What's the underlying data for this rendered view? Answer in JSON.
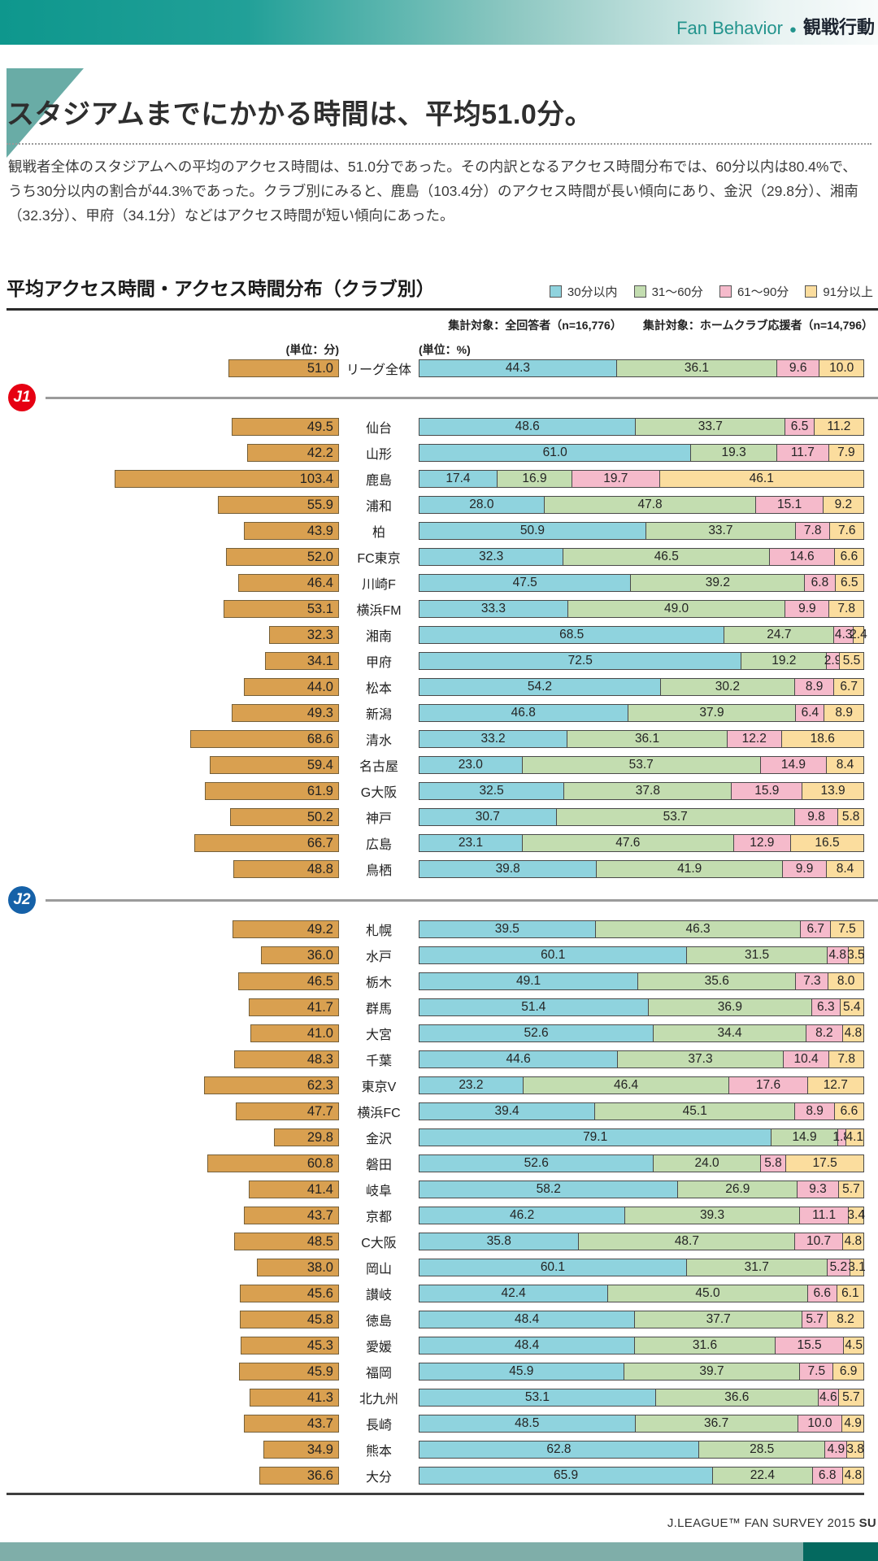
{
  "header": {
    "category_en": "Fan Behavior",
    "bullet": "●",
    "category_ja": "観戦行動"
  },
  "title": "スタジアムまでにかかる時間は、平均51.0分。",
  "body": "観戦者全体のスタジアムへの平均のアクセス時間は、51.0分であった。その内訳となるアクセス時間分布では、60分以内は80.4%で、うち30分以内の割合が44.3%であった。クラブ別にみると、鹿島（103.4分）のアクセス時間が長い傾向にあり、金沢（29.8分）、湘南（32.3分）、甲府（34.1分）などはアクセス時間が短い傾向にあった。",
  "footer": {
    "text": "J.LEAGUE™ FAN SURVEY 2015 ",
    "bold_suffix": "SU"
  },
  "colors": {
    "accent_teal": "#0E978D",
    "triangle": "#69ACA6",
    "avg_bar": "#D9A050",
    "j1_badge": "#E60012",
    "j2_badge": "#1561A8",
    "bottom_band": "#7FAEA9",
    "bottom_band_dark": "#04695F"
  },
  "chart_data": {
    "type": "bar",
    "title": "平均アクセス時間・アクセス時間分布（クラブ別）",
    "note_left": "集計対象：全回答者（n=16,776）",
    "note_right": "集計対象：ホームクラブ応援者（n=14,796）",
    "unit_avg_label": "(単位：分)",
    "unit_dist_label": "(単位：%)",
    "legend": [
      "30分以内",
      "31～60分",
      "61～90分",
      "91分以上"
    ],
    "segment_colors": [
      "#8FD3DE",
      "#C3DDB0",
      "#F5BACB",
      "#FBDD9E"
    ],
    "avg_axis_max": 103.4,
    "total_row": {
      "club": "リーグ全体",
      "avg": 51.0,
      "dist": [
        44.3,
        36.1,
        9.6,
        10.0
      ]
    },
    "sections": [
      {
        "badge": "J1",
        "badge_color": "#E60012",
        "rows": [
          {
            "club": "仙台",
            "avg": 49.5,
            "dist": [
              48.6,
              33.7,
              6.5,
              11.2
            ]
          },
          {
            "club": "山形",
            "avg": 42.2,
            "dist": [
              61.0,
              19.3,
              11.7,
              7.9
            ]
          },
          {
            "club": "鹿島",
            "avg": 103.4,
            "dist": [
              17.4,
              16.9,
              19.7,
              46.1
            ]
          },
          {
            "club": "浦和",
            "avg": 55.9,
            "dist": [
              28.0,
              47.8,
              15.1,
              9.2
            ]
          },
          {
            "club": "柏",
            "avg": 43.9,
            "dist": [
              50.9,
              33.7,
              7.8,
              7.6
            ]
          },
          {
            "club": "FC東京",
            "avg": 52.0,
            "dist": [
              32.3,
              46.5,
              14.6,
              6.6
            ]
          },
          {
            "club": "川崎F",
            "avg": 46.4,
            "dist": [
              47.5,
              39.2,
              6.8,
              6.5
            ]
          },
          {
            "club": "横浜FM",
            "avg": 53.1,
            "dist": [
              33.3,
              49.0,
              9.9,
              7.8
            ]
          },
          {
            "club": "湘南",
            "avg": 32.3,
            "dist": [
              68.5,
              24.7,
              4.3,
              2.4
            ]
          },
          {
            "club": "甲府",
            "avg": 34.1,
            "dist": [
              72.5,
              19.2,
              2.9,
              5.5
            ]
          },
          {
            "club": "松本",
            "avg": 44.0,
            "dist": [
              54.2,
              30.2,
              8.9,
              6.7
            ]
          },
          {
            "club": "新潟",
            "avg": 49.3,
            "dist": [
              46.8,
              37.9,
              6.4,
              8.9
            ]
          },
          {
            "club": "清水",
            "avg": 68.6,
            "dist": [
              33.2,
              36.1,
              12.2,
              18.6
            ]
          },
          {
            "club": "名古屋",
            "avg": 59.4,
            "dist": [
              23.0,
              53.7,
              14.9,
              8.4
            ]
          },
          {
            "club": "G大阪",
            "avg": 61.9,
            "dist": [
              32.5,
              37.8,
              15.9,
              13.9
            ]
          },
          {
            "club": "神戸",
            "avg": 50.2,
            "dist": [
              30.7,
              53.7,
              9.8,
              5.8
            ]
          },
          {
            "club": "広島",
            "avg": 66.7,
            "dist": [
              23.1,
              47.6,
              12.9,
              16.5
            ]
          },
          {
            "club": "鳥栖",
            "avg": 48.8,
            "dist": [
              39.8,
              41.9,
              9.9,
              8.4
            ]
          }
        ]
      },
      {
        "badge": "J2",
        "badge_color": "#1561A8",
        "rows": [
          {
            "club": "札幌",
            "avg": 49.2,
            "dist": [
              39.5,
              46.3,
              6.7,
              7.5
            ]
          },
          {
            "club": "水戸",
            "avg": 36.0,
            "dist": [
              60.1,
              31.5,
              4.8,
              3.5
            ]
          },
          {
            "club": "栃木",
            "avg": 46.5,
            "dist": [
              49.1,
              35.6,
              7.3,
              8.0
            ]
          },
          {
            "club": "群馬",
            "avg": 41.7,
            "dist": [
              51.4,
              36.9,
              6.3,
              5.4
            ]
          },
          {
            "club": "大宮",
            "avg": 41.0,
            "dist": [
              52.6,
              34.4,
              8.2,
              4.8
            ]
          },
          {
            "club": "千葉",
            "avg": 48.3,
            "dist": [
              44.6,
              37.3,
              10.4,
              7.8
            ]
          },
          {
            "club": "東京V",
            "avg": 62.3,
            "dist": [
              23.2,
              46.4,
              17.6,
              12.7
            ]
          },
          {
            "club": "横浜FC",
            "avg": 47.7,
            "dist": [
              39.4,
              45.1,
              8.9,
              6.6
            ]
          },
          {
            "club": "金沢",
            "avg": 29.8,
            "dist": [
              79.1,
              14.9,
              1.8,
              4.1
            ]
          },
          {
            "club": "磐田",
            "avg": 60.8,
            "dist": [
              52.6,
              24.0,
              5.8,
              17.5
            ]
          },
          {
            "club": "岐阜",
            "avg": 41.4,
            "dist": [
              58.2,
              26.9,
              9.3,
              5.7
            ]
          },
          {
            "club": "京都",
            "avg": 43.7,
            "dist": [
              46.2,
              39.3,
              11.1,
              3.4
            ]
          },
          {
            "club": "C大阪",
            "avg": 48.5,
            "dist": [
              35.8,
              48.7,
              10.7,
              4.8
            ]
          },
          {
            "club": "岡山",
            "avg": 38.0,
            "dist": [
              60.1,
              31.7,
              5.2,
              3.1
            ]
          },
          {
            "club": "讃岐",
            "avg": 45.6,
            "dist": [
              42.4,
              45.0,
              6.6,
              6.1
            ]
          },
          {
            "club": "徳島",
            "avg": 45.8,
            "dist": [
              48.4,
              37.7,
              5.7,
              8.2
            ]
          },
          {
            "club": "愛媛",
            "avg": 45.3,
            "dist": [
              48.4,
              31.6,
              15.5,
              4.5
            ]
          },
          {
            "club": "福岡",
            "avg": 45.9,
            "dist": [
              45.9,
              39.7,
              7.5,
              6.9
            ]
          },
          {
            "club": "北九州",
            "avg": 41.3,
            "dist": [
              53.1,
              36.6,
              4.6,
              5.7
            ]
          },
          {
            "club": "長崎",
            "avg": 43.7,
            "dist": [
              48.5,
              36.7,
              10.0,
              4.9
            ]
          },
          {
            "club": "熊本",
            "avg": 34.9,
            "dist": [
              62.8,
              28.5,
              4.9,
              3.8
            ]
          },
          {
            "club": "大分",
            "avg": 36.6,
            "dist": [
              65.9,
              22.4,
              6.8,
              4.8
            ]
          }
        ]
      }
    ]
  }
}
